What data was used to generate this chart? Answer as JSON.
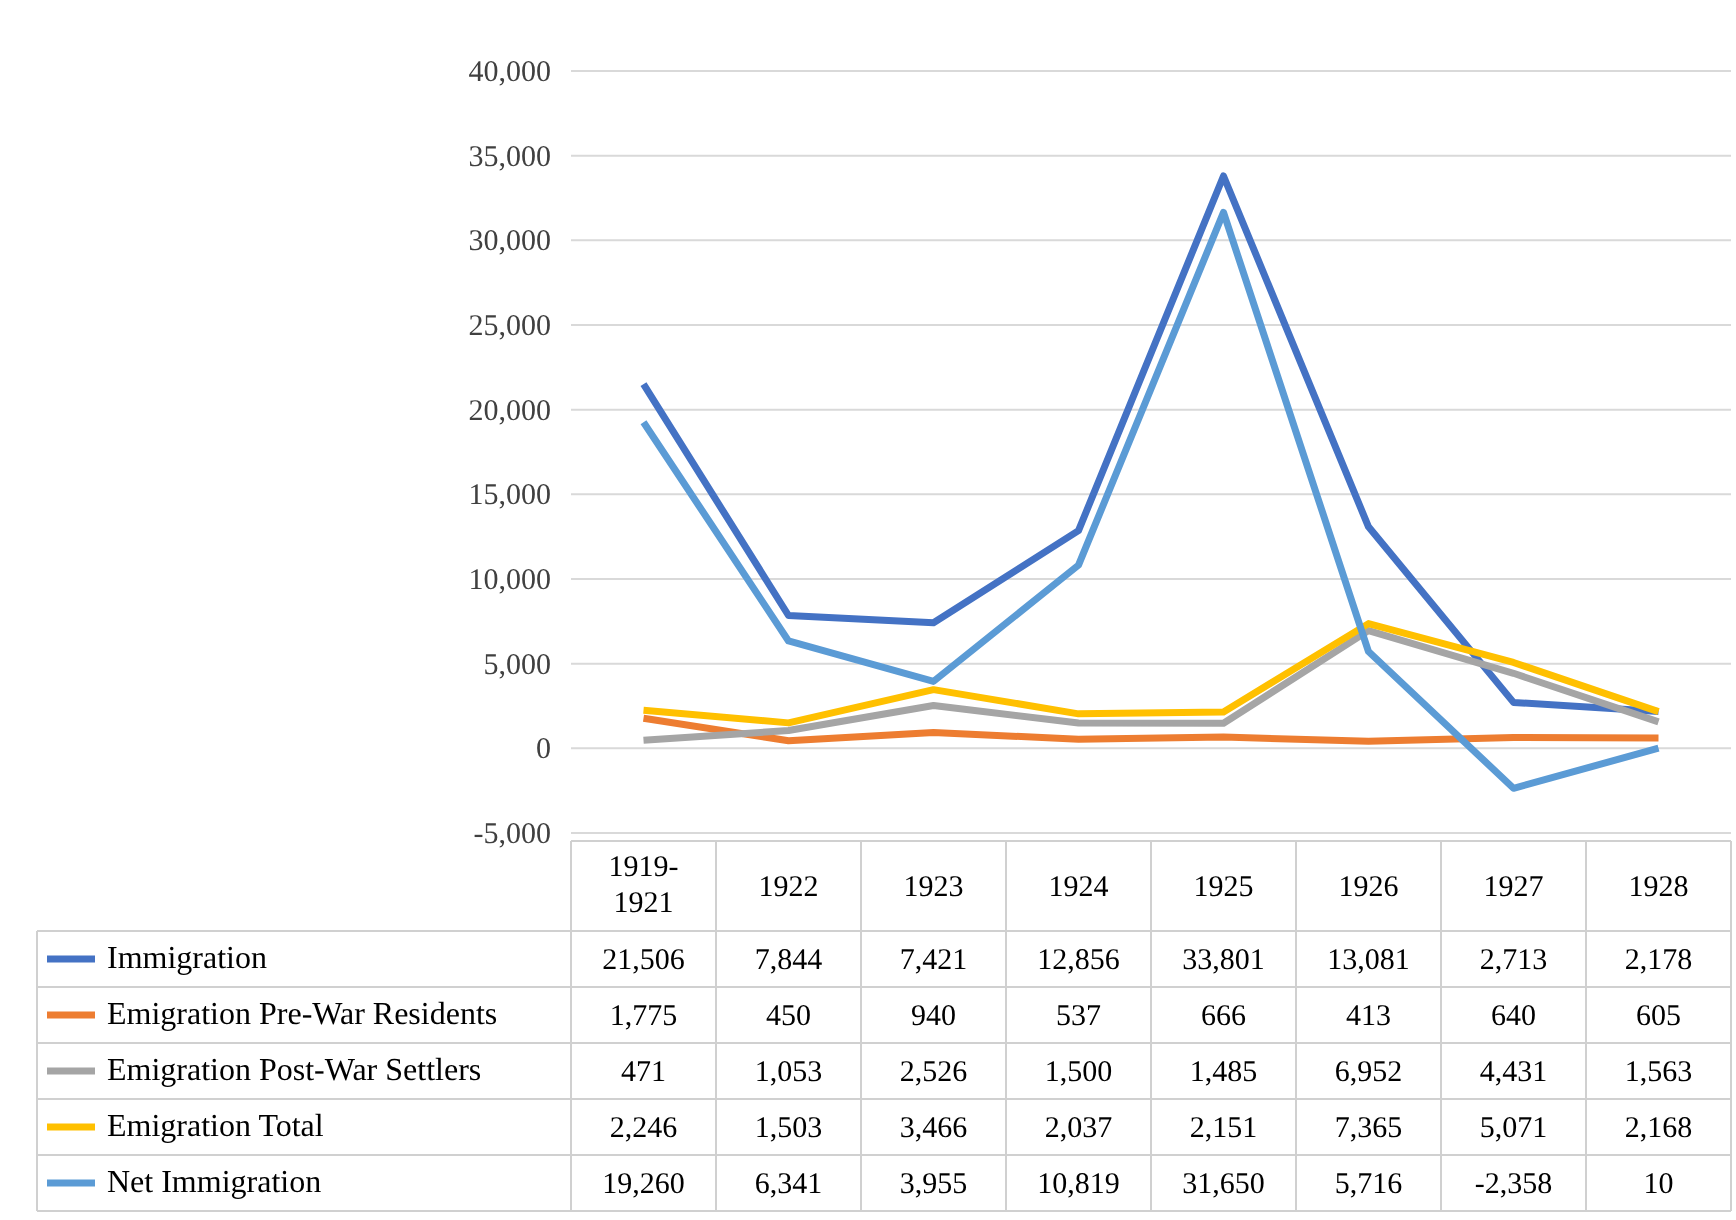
{
  "chart_data": {
    "type": "line",
    "categories": [
      "1919-\n1921",
      "1922",
      "1923",
      "1924",
      "1925",
      "1926",
      "1927",
      "1928"
    ],
    "series": [
      {
        "name": "Immigration",
        "color": "#4472c4",
        "values": [
          21506,
          7844,
          7421,
          12856,
          33801,
          13081,
          2713,
          2178
        ],
        "value_labels": [
          "21,506",
          "7,844",
          "7,421",
          "12,856",
          "33,801",
          "13,081",
          "2,713",
          "2,178"
        ]
      },
      {
        "name": "Emigration Pre-War Residents",
        "color": "#ed7d31",
        "values": [
          1775,
          450,
          940,
          537,
          666,
          413,
          640,
          605
        ],
        "value_labels": [
          "1,775",
          "450",
          "940",
          "537",
          "666",
          "413",
          "640",
          "605"
        ]
      },
      {
        "name": "Emigration Post-War Settlers",
        "color": "#a5a5a5",
        "values": [
          471,
          1053,
          2526,
          1500,
          1485,
          6952,
          4431,
          1563
        ],
        "value_labels": [
          "471",
          "1,053",
          "2,526",
          "1,500",
          "1,485",
          "6,952",
          "4,431",
          "1,563"
        ]
      },
      {
        "name": "Emigration Total",
        "color": "#ffc000",
        "values": [
          2246,
          1503,
          3466,
          2037,
          2151,
          7365,
          5071,
          2168
        ],
        "value_labels": [
          "2,246",
          "1,503",
          "3,466",
          "2,037",
          "2,151",
          "7,365",
          "5,071",
          "2,168"
        ]
      },
      {
        "name": "Net Immigration",
        "color": "#5b9bd5",
        "values": [
          19260,
          6341,
          3955,
          10819,
          31650,
          5716,
          -2358,
          10
        ],
        "value_labels": [
          "19,260",
          "6,341",
          "3,955",
          "10,819",
          "31,650",
          "5,716",
          "-2,358",
          "10"
        ]
      }
    ],
    "ylim": [
      -5000,
      40000
    ],
    "yticks": [
      {
        "value": -5000,
        "label": "-5,000"
      },
      {
        "value": 0,
        "label": "0"
      },
      {
        "value": 5000,
        "label": "5,000"
      },
      {
        "value": 10000,
        "label": "10,000"
      },
      {
        "value": 15000,
        "label": "15,000"
      },
      {
        "value": 20000,
        "label": "20,000"
      },
      {
        "value": 25000,
        "label": "25,000"
      },
      {
        "value": 30000,
        "label": "30,000"
      },
      {
        "value": 35000,
        "label": "35,000"
      },
      {
        "value": 40000,
        "label": "40,000"
      }
    ],
    "grid": "y",
    "legend": "bottom"
  }
}
